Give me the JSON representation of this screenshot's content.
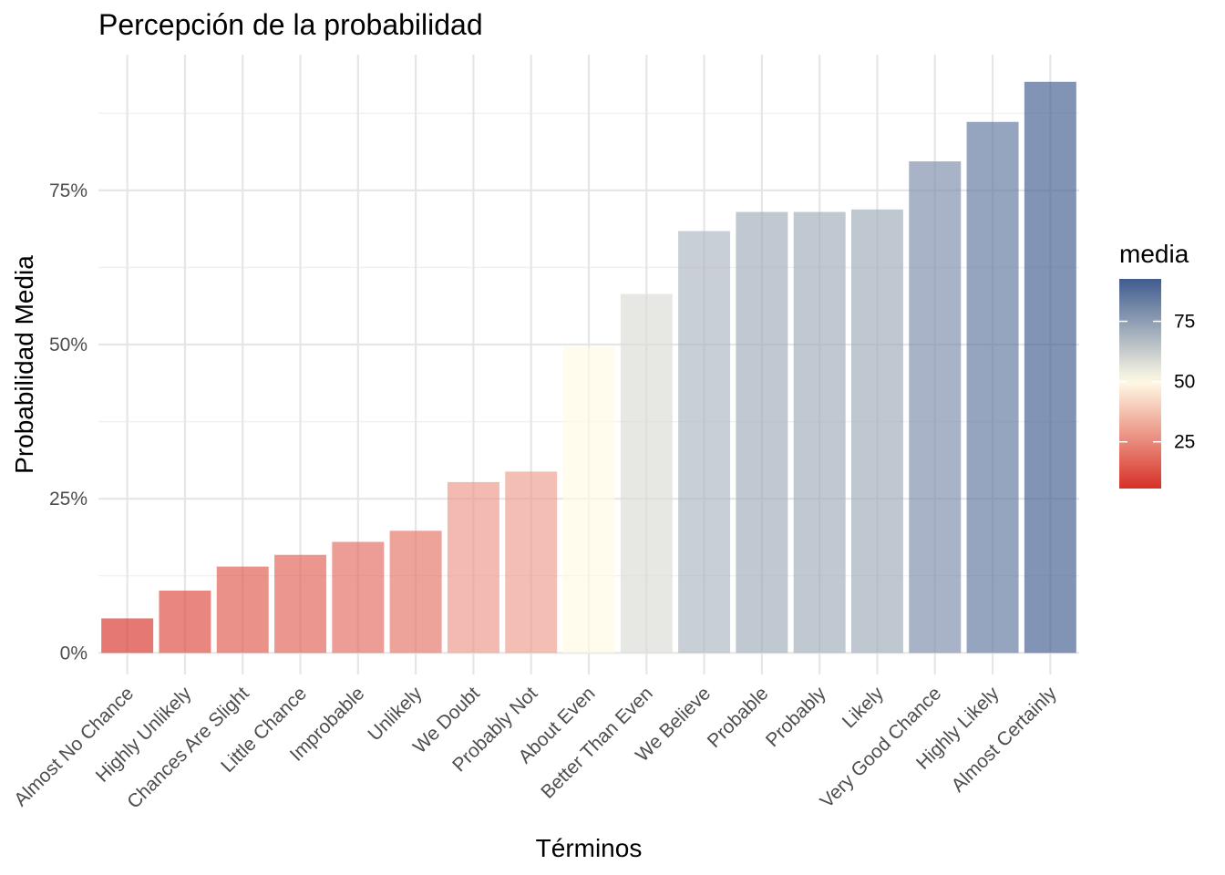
{
  "chart_data": {
    "type": "bar",
    "title": "Percepción de la probabilidad",
    "xlabel": "Términos",
    "ylabel": "Probabilidad Media",
    "categories": [
      "Almost No Chance",
      "Highly Unlikely",
      "Chances Are Slight",
      "Little Chance",
      "Improbable",
      "Unlikely",
      "We Doubt",
      "Probably Not",
      "About Even",
      "Better Than Even",
      "We Believe",
      "Probable",
      "Probably",
      "Likely",
      "Very Good Chance",
      "Highly Likely",
      "Almost Certainly"
    ],
    "values": [
      5.6,
      10.1,
      14.0,
      15.9,
      18.0,
      19.8,
      27.7,
      29.4,
      49.6,
      58.2,
      68.4,
      71.5,
      71.5,
      71.9,
      79.7,
      86.1,
      92.6
    ],
    "ylim": [
      -3.5,
      97
    ],
    "y_ticks": [
      0,
      25,
      50,
      75
    ],
    "y_tick_labels": [
      "0%",
      "25%",
      "50%",
      "75%"
    ],
    "grid": true,
    "legend": {
      "title": "media",
      "position": "right",
      "range": [
        5.6,
        92.6
      ],
      "ticks": [
        25,
        50,
        75
      ],
      "tick_labels": [
        "25",
        "50",
        "75"
      ],
      "low_color": "#d73027",
      "mid_color": "#fffbe6",
      "mid_value": 50,
      "high_color": "#3f5b8f",
      "bar_opacity": 0.65
    }
  }
}
